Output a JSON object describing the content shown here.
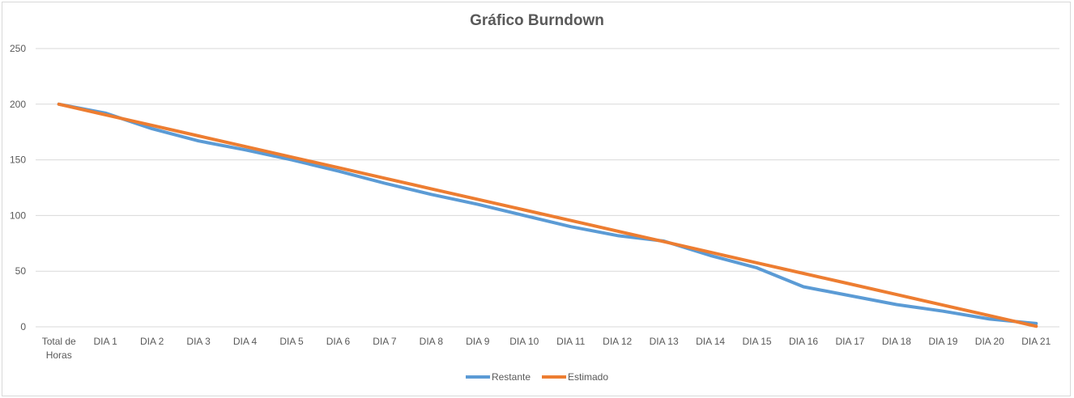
{
  "chart_data": {
    "type": "line",
    "title": "Gráfico Burndown",
    "categories": [
      "Total de Horas",
      "DIA 1",
      "DIA 2",
      "DIA 3",
      "DIA 4",
      "DIA 5",
      "DIA 6",
      "DIA 7",
      "DIA 8",
      "DIA 9",
      "DIA 10",
      "DIA 11",
      "DIA 12",
      "DIA 13",
      "DIA 14",
      "DIA 15",
      "DIA 16",
      "DIA 17",
      "DIA 18",
      "DIA 19",
      "DIA 20",
      "DIA 21"
    ],
    "series": [
      {
        "name": "Restante",
        "color": "#5B9BD5",
        "values": [
          200,
          192,
          178,
          167,
          159,
          150,
          140,
          129,
          119,
          110,
          100,
          90,
          82,
          77,
          64,
          53,
          36,
          28,
          20,
          14,
          7,
          3
        ]
      },
      {
        "name": "Estimado",
        "color": "#ED7D31",
        "values": [
          200,
          190.5,
          181,
          171.5,
          162,
          152.5,
          143,
          133.5,
          124,
          114.5,
          105,
          95.5,
          86,
          76.5,
          67,
          57.5,
          48,
          38.5,
          29,
          19.5,
          10,
          0.5
        ]
      }
    ],
    "ylim": [
      0,
      250
    ],
    "yticks": [
      "0",
      "50",
      "100",
      "150",
      "200",
      "250"
    ],
    "xlabel": "",
    "ylabel": "",
    "grid": true,
    "legend_position": "bottom"
  }
}
